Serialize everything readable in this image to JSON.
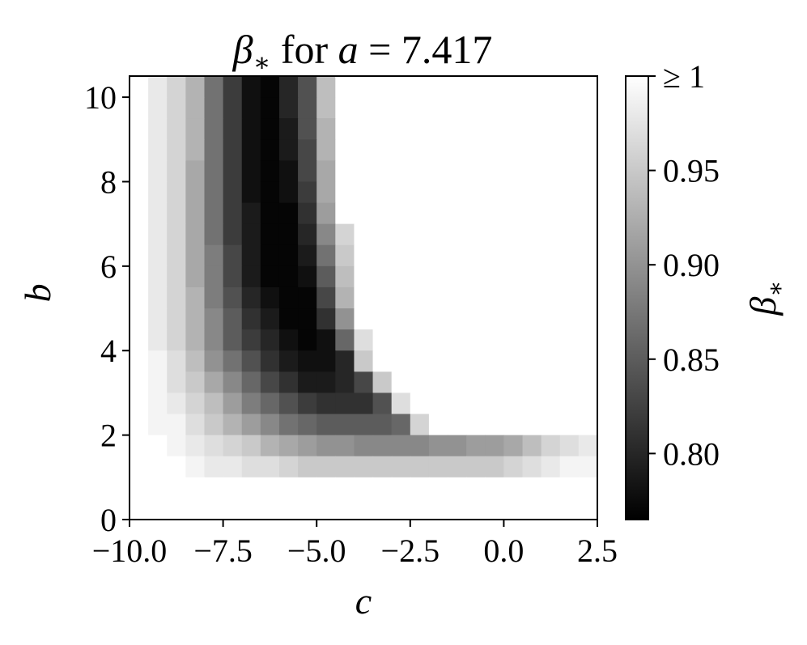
{
  "chart_data": {
    "type": "heatmap",
    "title": {
      "symbol": "β",
      "subscript": "∗",
      "middle": " for ",
      "var": "a",
      "rest": " = 7.417"
    },
    "xlabel": "c",
    "ylabel": "b",
    "xlim": [
      -10.0,
      2.5
    ],
    "ylim": [
      0,
      10.5
    ],
    "xticks": [
      -10.0,
      -7.5,
      -5.0,
      -2.5,
      0.0,
      2.5
    ],
    "xtick_labels": [
      "−10.0",
      "−7.5",
      "−5.0",
      "−2.5",
      "0.0",
      "2.5"
    ],
    "yticks": [
      0,
      2,
      4,
      6,
      8,
      10
    ],
    "ytick_labels": [
      "0",
      "2",
      "4",
      "6",
      "8",
      "10"
    ],
    "colormap": "gray",
    "color_range": [
      0.765,
      1.0
    ],
    "colorbar": {
      "label": {
        "symbol": "β",
        "subscript": "∗"
      },
      "ticks": [
        0.8,
        0.85,
        0.9,
        0.95,
        1.0
      ],
      "tick_labels": [
        "0.80",
        "0.85",
        "0.90",
        "0.95",
        "≥ 1"
      ]
    },
    "grid": false,
    "cell_width_c": 0.5,
    "cell_height_b": 0.5,
    "c_start": -10.0,
    "b_start": 0.5,
    "grid_note": "values[i][j]: row i from top (b from 10.5 down), column j (c from -10.0 up)",
    "values": [
      [
        1,
        0.98,
        0.96,
        0.93,
        0.87,
        0.82,
        0.78,
        0.77,
        0.8,
        0.84,
        0.94,
        1,
        1,
        1,
        1,
        1,
        1,
        1,
        1,
        1,
        1,
        1,
        1,
        1,
        1
      ],
      [
        1,
        0.98,
        0.96,
        0.93,
        0.87,
        0.82,
        0.78,
        0.77,
        0.8,
        0.84,
        0.94,
        1,
        1,
        1,
        1,
        1,
        1,
        1,
        1,
        1,
        1,
        1,
        1,
        1,
        1
      ],
      [
        1,
        0.98,
        0.96,
        0.93,
        0.87,
        0.82,
        0.78,
        0.77,
        0.79,
        0.84,
        0.93,
        1,
        1,
        1,
        1,
        1,
        1,
        1,
        1,
        1,
        1,
        1,
        1,
        1,
        1
      ],
      [
        1,
        0.98,
        0.96,
        0.93,
        0.87,
        0.82,
        0.78,
        0.77,
        0.79,
        0.83,
        0.93,
        1,
        1,
        1,
        1,
        1,
        1,
        1,
        1,
        1,
        1,
        1,
        1,
        1,
        1
      ],
      [
        1,
        0.98,
        0.96,
        0.92,
        0.87,
        0.82,
        0.78,
        0.77,
        0.78,
        0.83,
        0.92,
        1,
        1,
        1,
        1,
        1,
        1,
        1,
        1,
        1,
        1,
        1,
        1,
        1,
        1
      ],
      [
        1,
        0.98,
        0.96,
        0.92,
        0.87,
        0.82,
        0.78,
        0.77,
        0.78,
        0.82,
        0.92,
        1,
        1,
        1,
        1,
        1,
        1,
        1,
        1,
        1,
        1,
        1,
        1,
        1,
        1
      ],
      [
        1,
        0.98,
        0.96,
        0.92,
        0.87,
        0.82,
        0.79,
        0.77,
        0.77,
        0.81,
        0.91,
        1,
        1,
        1,
        1,
        1,
        1,
        1,
        1,
        1,
        1,
        1,
        1,
        1,
        1
      ],
      [
        1,
        0.98,
        0.96,
        0.92,
        0.87,
        0.82,
        0.79,
        0.77,
        0.77,
        0.8,
        0.89,
        0.96,
        1,
        1,
        1,
        1,
        1,
        1,
        1,
        1,
        1,
        1,
        1,
        1,
        1
      ],
      [
        1,
        0.98,
        0.96,
        0.92,
        0.88,
        0.83,
        0.79,
        0.77,
        0.77,
        0.79,
        0.87,
        0.95,
        1,
        1,
        1,
        1,
        1,
        1,
        1,
        1,
        1,
        1,
        1,
        1,
        1
      ],
      [
        1,
        0.98,
        0.96,
        0.92,
        0.88,
        0.83,
        0.79,
        0.77,
        0.77,
        0.78,
        0.85,
        0.94,
        1,
        1,
        1,
        1,
        1,
        1,
        1,
        1,
        1,
        1,
        1,
        1,
        1
      ],
      [
        1,
        0.98,
        0.96,
        0.93,
        0.88,
        0.84,
        0.8,
        0.78,
        0.77,
        0.77,
        0.83,
        0.93,
        1,
        1,
        1,
        1,
        1,
        1,
        1,
        1,
        1,
        1,
        1,
        1,
        1
      ],
      [
        1,
        0.98,
        0.96,
        0.93,
        0.89,
        0.85,
        0.81,
        0.79,
        0.77,
        0.77,
        0.81,
        0.9,
        1,
        1,
        1,
        1,
        1,
        1,
        1,
        1,
        1,
        1,
        1,
        1,
        1
      ],
      [
        1,
        0.98,
        0.96,
        0.93,
        0.89,
        0.85,
        0.82,
        0.8,
        0.78,
        0.77,
        0.78,
        0.86,
        0.97,
        1,
        1,
        1,
        1,
        1,
        1,
        1,
        1,
        1,
        1,
        1,
        1
      ],
      [
        1,
        0.99,
        0.97,
        0.94,
        0.9,
        0.87,
        0.84,
        0.81,
        0.79,
        0.78,
        0.78,
        0.8,
        0.95,
        1,
        1,
        1,
        1,
        1,
        1,
        1,
        1,
        1,
        1,
        1,
        1
      ],
      [
        1,
        0.99,
        0.97,
        0.95,
        0.92,
        0.89,
        0.86,
        0.83,
        0.81,
        0.79,
        0.79,
        0.8,
        0.83,
        0.95,
        1,
        1,
        1,
        1,
        1,
        1,
        1,
        1,
        1,
        1,
        1
      ],
      [
        1,
        0.99,
        0.98,
        0.96,
        0.94,
        0.91,
        0.88,
        0.86,
        0.84,
        0.82,
        0.81,
        0.81,
        0.81,
        0.84,
        0.97,
        1,
        1,
        1,
        1,
        1,
        1,
        1,
        1,
        1,
        1
      ],
      [
        1,
        0.99,
        0.99,
        0.97,
        0.95,
        0.93,
        0.91,
        0.89,
        0.87,
        0.86,
        0.85,
        0.85,
        0.85,
        0.85,
        0.86,
        0.96,
        1,
        1,
        1,
        1,
        1,
        1,
        1,
        1,
        1
      ],
      [
        1,
        1,
        0.99,
        0.98,
        0.97,
        0.96,
        0.95,
        0.93,
        0.92,
        0.91,
        0.9,
        0.9,
        0.89,
        0.89,
        0.89,
        0.89,
        0.9,
        0.9,
        0.91,
        0.91,
        0.92,
        0.94,
        0.96,
        0.97,
        0.98
      ],
      [
        1,
        1,
        1,
        0.99,
        0.98,
        0.98,
        0.97,
        0.97,
        0.96,
        0.95,
        0.95,
        0.95,
        0.95,
        0.95,
        0.95,
        0.95,
        0.95,
        0.95,
        0.95,
        0.95,
        0.96,
        0.97,
        0.98,
        0.99,
        0.99
      ],
      [
        1,
        1,
        1,
        1,
        1,
        1,
        1,
        1,
        1,
        1,
        1,
        1,
        1,
        1,
        1,
        1,
        1,
        1,
        1,
        1,
        1,
        1,
        1,
        1,
        1
      ]
    ]
  }
}
